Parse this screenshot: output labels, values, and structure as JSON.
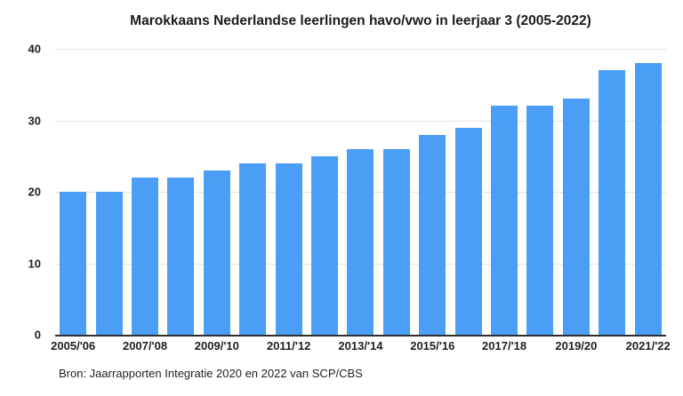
{
  "chart_data": {
    "type": "bar",
    "title": "Marokkaans Nederlandse leerlingen havo/vwo in leerjaar 3 (2005-2022)",
    "values": [
      20,
      20,
      22,
      22,
      23,
      24,
      24,
      25,
      26,
      26,
      28,
      29,
      32,
      32,
      33,
      37,
      38
    ],
    "bar_count": 17,
    "x_tick_labels": [
      "2005/'06",
      "2007/'08",
      "2009/'10",
      "2011/'12",
      "2013/'14",
      "2015/'16",
      "2017/'18",
      "2019/20",
      "2021/'22"
    ],
    "x_tick_bar_indices": [
      0,
      2,
      4,
      6,
      8,
      10,
      12,
      14,
      16
    ],
    "y_ticks": [
      0,
      10,
      20,
      30,
      40
    ],
    "ylim": [
      0,
      40
    ],
    "xlabel": "",
    "ylabel": "",
    "grid": true,
    "legend_position": "none",
    "bar_color": "#4a9ef5",
    "gridline_color": "#e2e2e2",
    "axis_line_color": "#2e2e2e",
    "text_color": "#1f1f1f"
  },
  "footer": {
    "source": "Bron: Jaarrapporten Integratie 2020 en 2022 van SCP/CBS"
  }
}
